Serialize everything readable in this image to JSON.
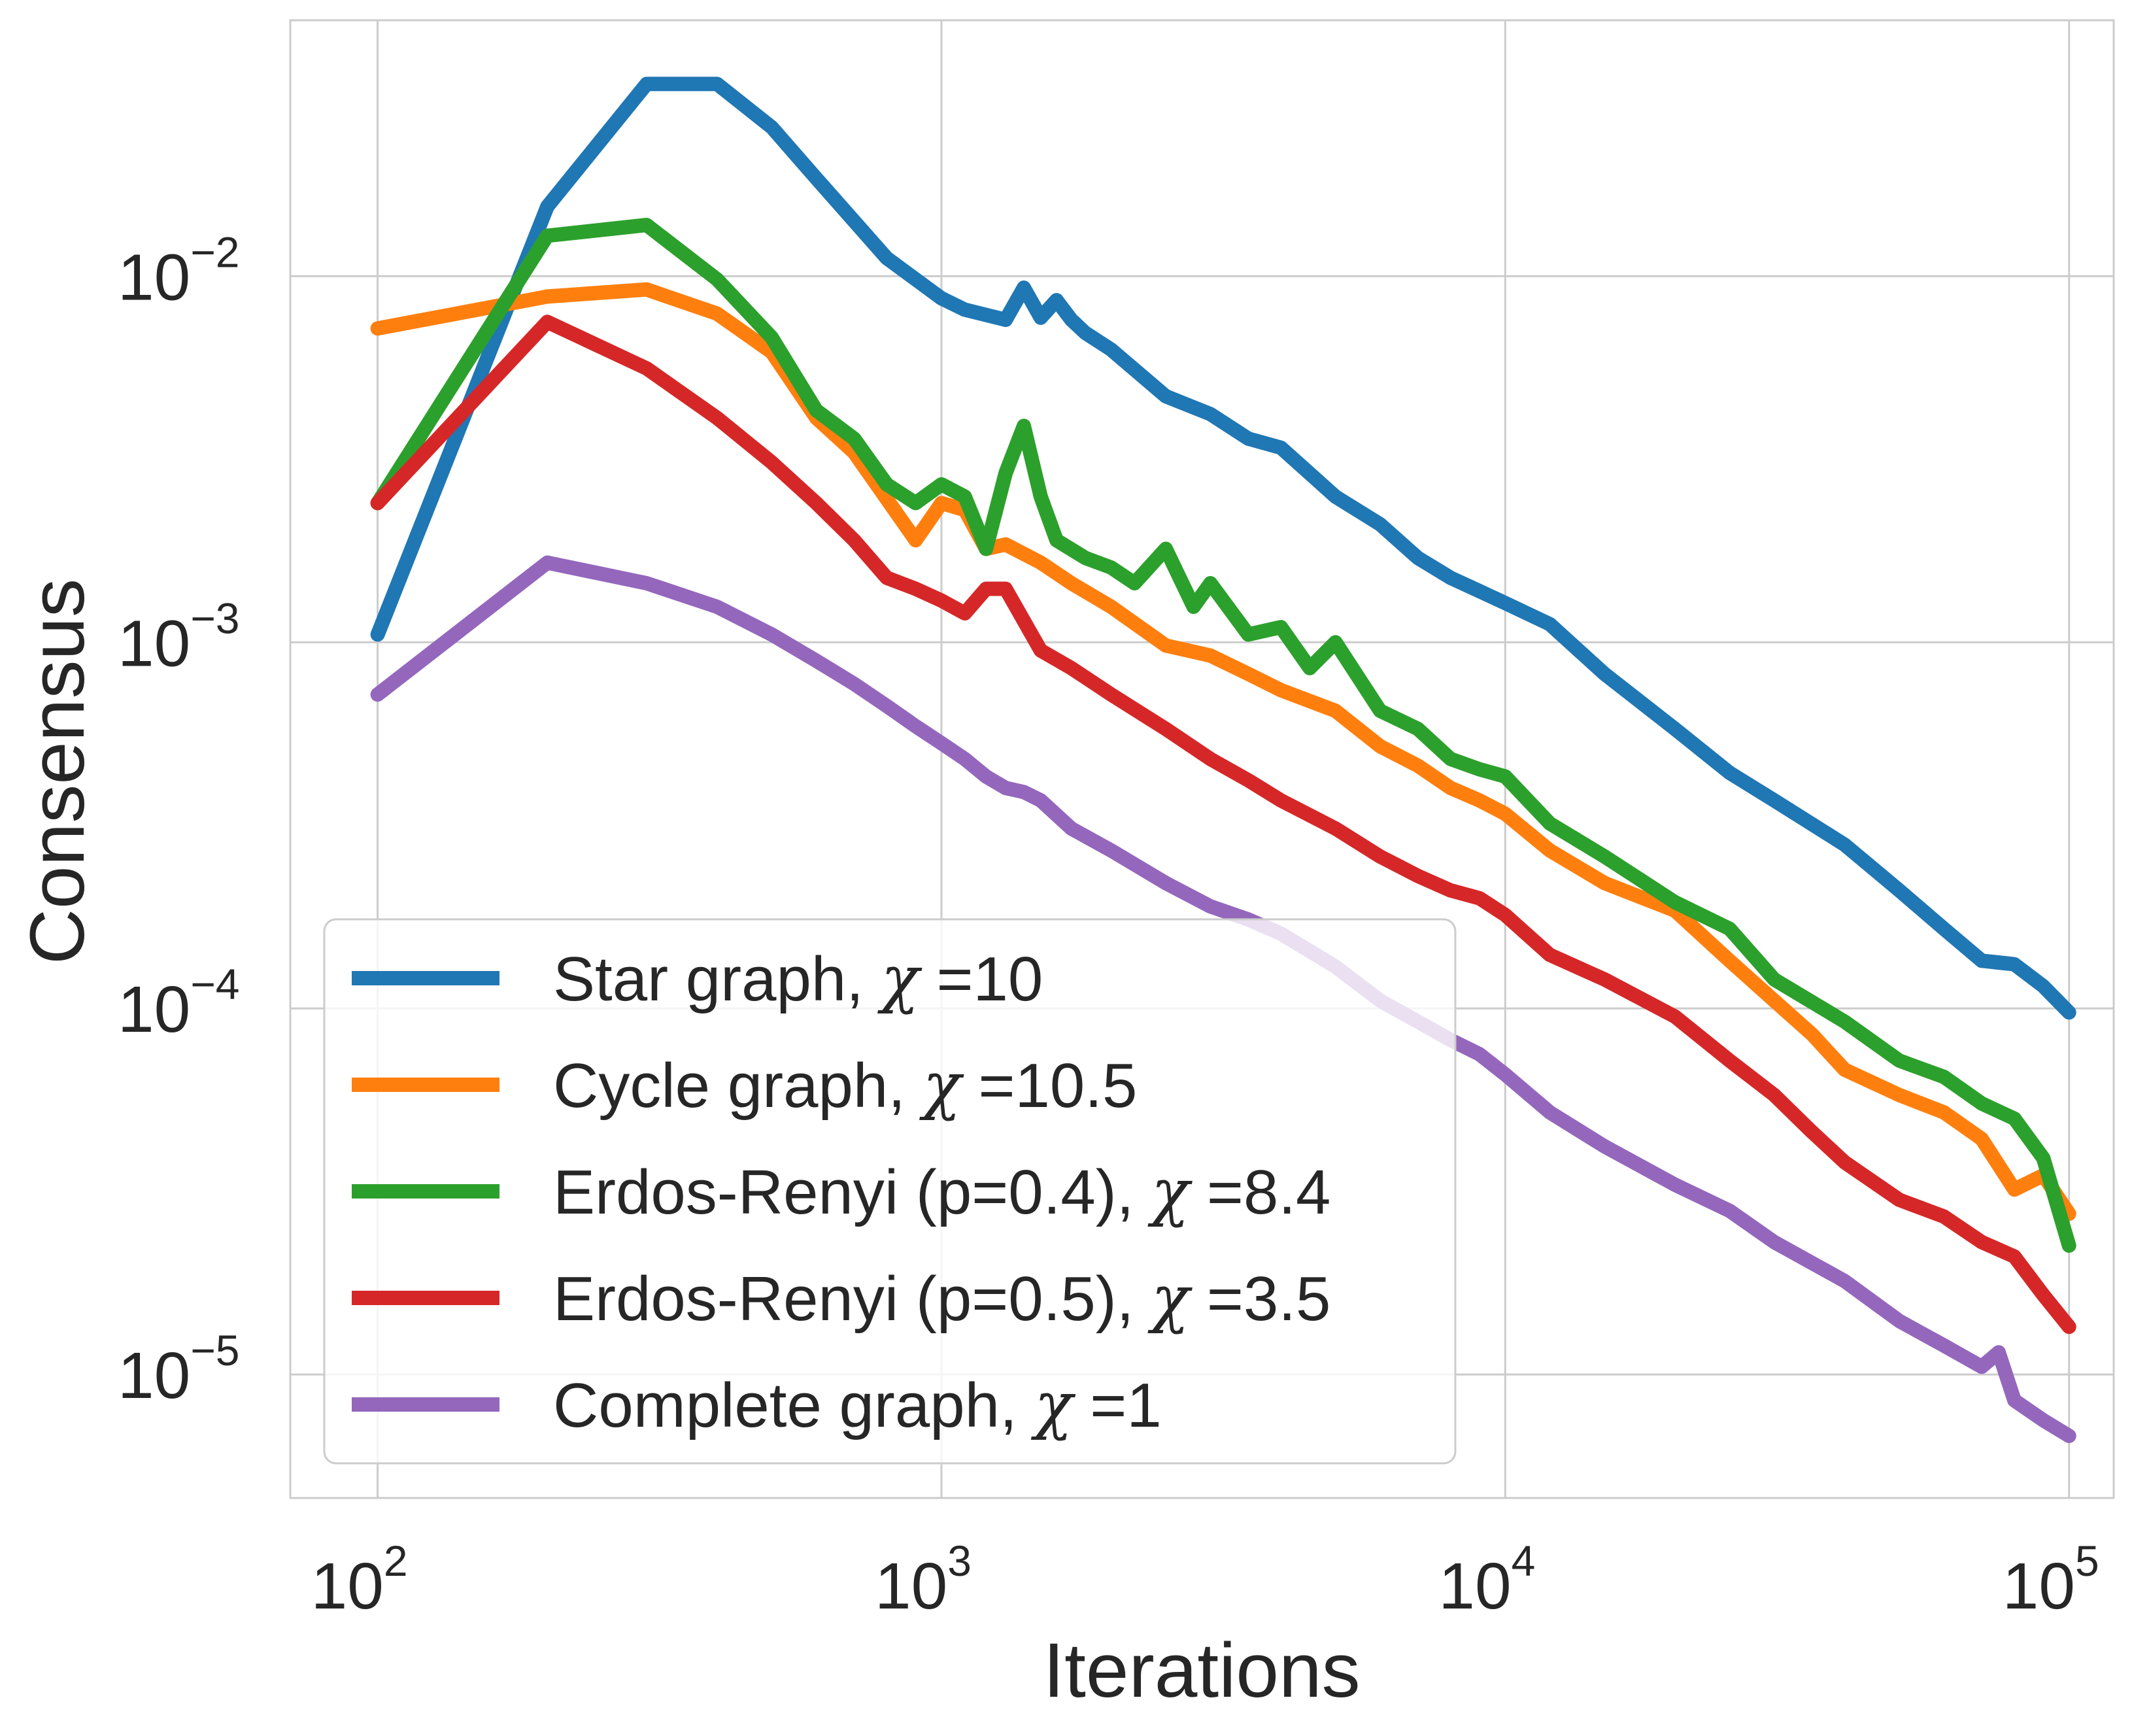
{
  "chart_data": {
    "type": "line",
    "title": "",
    "xlabel": "Iterations",
    "ylabel": "Consensus",
    "xscale": "log",
    "yscale": "log",
    "xlim": [
      70,
      120000
    ],
    "ylim": [
      4.6e-06,
      0.05
    ],
    "grid": true,
    "legend_position": "lower-left",
    "x_ticks": [
      {
        "value": 100,
        "base": "10",
        "exp": "2"
      },
      {
        "value": 1000,
        "base": "10",
        "exp": "3"
      },
      {
        "value": 10000,
        "base": "10",
        "exp": "4"
      },
      {
        "value": 100000,
        "base": "10",
        "exp": "5"
      }
    ],
    "y_ticks": [
      {
        "value": 0.01,
        "base": "10",
        "exp": "−2"
      },
      {
        "value": 0.001,
        "base": "10",
        "exp": "−3"
      },
      {
        "value": 0.0001,
        "base": "10",
        "exp": "−4"
      },
      {
        "value": 1e-05,
        "base": "10",
        "exp": "−5"
      }
    ],
    "series": [
      {
        "name": "Star graph",
        "chi_value": "=10",
        "color": "#1f77b4",
        "x": [
          100,
          200,
          300,
          400,
          500,
          600,
          800,
          1000,
          1100,
          1300,
          1400,
          1500,
          1600,
          1700,
          1800,
          2000,
          2500,
          3000,
          3500,
          4000,
          5000,
          6000,
          7000,
          8000,
          9000,
          10000,
          12000,
          15000,
          20000,
          25000,
          30000,
          40000,
          50000,
          60000,
          70000,
          80000,
          90000,
          100000
        ],
        "values": [
          0.00105,
          0.0155,
          0.0335,
          0.0335,
          0.0255,
          0.0185,
          0.0112,
          0.0087,
          0.0081,
          0.0076,
          0.0093,
          0.0077,
          0.0086,
          0.0076,
          0.007,
          0.0063,
          0.0047,
          0.0042,
          0.0036,
          0.0034,
          0.0025,
          0.0021,
          0.0017,
          0.0015,
          0.00138,
          0.00128,
          0.00112,
          0.00082,
          0.00058,
          0.00044,
          0.00037,
          0.00028,
          0.00021,
          0.000165,
          0.000135,
          0.000132,
          0.000115,
          9.75e-05
        ]
      },
      {
        "name": "Cycle graph",
        "chi_value": "=10.5",
        "color": "#ff7f0e",
        "x": [
          100,
          200,
          300,
          400,
          500,
          600,
          700,
          900,
          1000,
          1100,
          1200,
          1300,
          1500,
          1700,
          2000,
          2500,
          3000,
          3500,
          4000,
          5000,
          6000,
          7000,
          8000,
          9000,
          10000,
          12000,
          15000,
          20000,
          25000,
          30000,
          35000,
          40000,
          50000,
          60000,
          70000,
          80000,
          90000,
          100000
        ],
        "values": [
          0.0072,
          0.0088,
          0.0092,
          0.0079,
          0.0062,
          0.0041,
          0.0033,
          0.0019,
          0.0024,
          0.0023,
          0.0018,
          0.00185,
          0.00165,
          0.00145,
          0.00125,
          0.00098,
          0.00092,
          0.00082,
          0.00074,
          0.00065,
          0.00052,
          0.00046,
          0.0004,
          0.00037,
          0.00034,
          0.00027,
          0.00022,
          0.000185,
          0.000135,
          0.000105,
          8.5e-05,
          6.8e-05,
          5.8e-05,
          5.2e-05,
          4.4e-05,
          3.2e-05,
          3.5e-05,
          2.75e-05
        ]
      },
      {
        "name": "Erdos-Renyi (p=0.4)",
        "chi_value": "=8.4",
        "color": "#2ca02c",
        "x": [
          100,
          200,
          300,
          400,
          500,
          600,
          700,
          800,
          900,
          1000,
          1100,
          1200,
          1300,
          1400,
          1500,
          1600,
          1800,
          2000,
          2200,
          2500,
          2800,
          3000,
          3500,
          4000,
          4500,
          5000,
          6000,
          7000,
          8000,
          9000,
          10000,
          12000,
          15000,
          20000,
          25000,
          30000,
          40000,
          50000,
          60000,
          70000,
          80000,
          90000,
          100000
        ],
        "values": [
          0.0024,
          0.0129,
          0.0138,
          0.0098,
          0.0068,
          0.0043,
          0.0036,
          0.0027,
          0.0024,
          0.0027,
          0.0025,
          0.0018,
          0.0029,
          0.0039,
          0.0025,
          0.0019,
          0.0017,
          0.0016,
          0.00145,
          0.0018,
          0.00125,
          0.00145,
          0.00105,
          0.0011,
          0.00085,
          0.001,
          0.00065,
          0.00058,
          0.00048,
          0.00045,
          0.00043,
          0.00032,
          0.00026,
          0.000195,
          0.000165,
          0.00012,
          9.2e-05,
          7.2e-05,
          6.5e-05,
          5.5e-05,
          5e-05,
          3.9e-05,
          2.25e-05
        ]
      },
      {
        "name": "Erdos-Renyi (p=0.5)",
        "chi_value": "=3.5",
        "color": "#d62728",
        "x": [
          100,
          200,
          300,
          400,
          500,
          600,
          700,
          800,
          900,
          1000,
          1100,
          1200,
          1300,
          1500,
          1700,
          2000,
          2500,
          3000,
          3500,
          4000,
          5000,
          6000,
          7000,
          8000,
          9000,
          10000,
          12000,
          15000,
          20000,
          25000,
          30000,
          35000,
          40000,
          50000,
          60000,
          70000,
          80000,
          90000,
          100000
        ],
        "values": [
          0.0024,
          0.0075,
          0.0056,
          0.0041,
          0.0031,
          0.0024,
          0.0019,
          0.0015,
          0.0014,
          0.0013,
          0.0012,
          0.0014,
          0.0014,
          0.00095,
          0.00085,
          0.00072,
          0.00058,
          0.00048,
          0.00042,
          0.00037,
          0.00031,
          0.00026,
          0.00023,
          0.00021,
          0.0002,
          0.00018,
          0.00014,
          0.00012,
          9.5e-05,
          7.2e-05,
          5.8e-05,
          4.6e-05,
          3.8e-05,
          3e-05,
          2.7e-05,
          2.3e-05,
          2.1e-05,
          1.65e-05,
          1.35e-05
        ]
      },
      {
        "name": "Complete graph",
        "chi_value": "=1",
        "color": "#9467bd",
        "x": [
          100,
          200,
          300,
          400,
          500,
          600,
          700,
          800,
          900,
          1000,
          1100,
          1200,
          1300,
          1400,
          1500,
          1700,
          2000,
          2500,
          3000,
          3500,
          4000,
          5000,
          6000,
          7000,
          8000,
          9000,
          10000,
          12000,
          15000,
          20000,
          25000,
          30000,
          40000,
          50000,
          60000,
          70000,
          75000,
          80000,
          90000,
          100000
        ],
        "values": [
          0.00072,
          0.00165,
          0.00145,
          0.00125,
          0.00105,
          0.00089,
          0.00077,
          0.00067,
          0.00059,
          0.00053,
          0.00048,
          0.00043,
          0.0004,
          0.00039,
          0.00037,
          0.00031,
          0.00027,
          0.00022,
          0.00019,
          0.000175,
          0.00016,
          0.00013,
          0.000105,
          9.2e-05,
          8.2e-05,
          7.5e-05,
          6.6e-05,
          5.2e-05,
          4.2e-05,
          3.3e-05,
          2.8e-05,
          2.3e-05,
          1.8e-05,
          1.4e-05,
          1.2e-05,
          1.05e-05,
          1.15e-05,
          8.5e-06,
          7.5e-06,
          6.8e-06
        ]
      }
    ]
  }
}
